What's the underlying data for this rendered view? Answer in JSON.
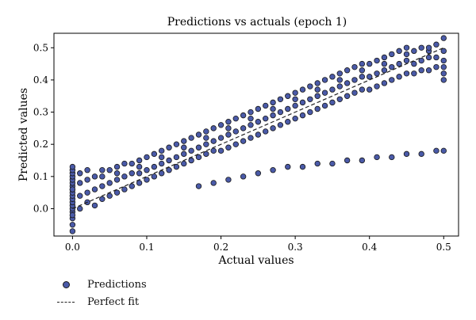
{
  "chart_data": {
    "type": "scatter",
    "title": "Predictions vs actuals (epoch 1)",
    "xlabel": "Actual values",
    "ylabel": "Predicted values",
    "xlim": [
      -0.025,
      0.52
    ],
    "ylim": [
      -0.085,
      0.545
    ],
    "xticks": [
      0.0,
      0.1,
      0.2,
      0.3,
      0.4,
      0.5
    ],
    "xtick_labels": [
      "0.0",
      "0.1",
      "0.2",
      "0.3",
      "0.4",
      "0.5"
    ],
    "yticks": [
      0.0,
      0.1,
      0.2,
      0.3,
      0.4,
      0.5
    ],
    "ytick_labels": [
      "0.0",
      "0.1",
      "0.2",
      "0.3",
      "0.4",
      "0.5"
    ],
    "grid": false,
    "legend_position": "below-left",
    "colors": {
      "marker_fill": "#4a5aa8",
      "marker_edge": "#1a1a1a",
      "line": "#222222"
    },
    "series": [
      {
        "name": "Predictions",
        "kind": "points",
        "x": [
          0,
          0,
          0,
          0,
          0,
          0,
          0,
          0,
          0,
          0,
          0,
          0,
          0,
          0,
          0,
          0,
          0,
          0,
          0,
          0,
          0.01,
          0.01,
          0.01,
          0.01,
          0.02,
          0.02,
          0.02,
          0.02,
          0.03,
          0.03,
          0.03,
          0.04,
          0.04,
          0.04,
          0.04,
          0.05,
          0.05,
          0.05,
          0.06,
          0.06,
          0.06,
          0.06,
          0.07,
          0.07,
          0.07,
          0.08,
          0.08,
          0.08,
          0.09,
          0.09,
          0.09,
          0.09,
          0.1,
          0.1,
          0.1,
          0.11,
          0.11,
          0.11,
          0.12,
          0.12,
          0.12,
          0.12,
          0.13,
          0.13,
          0.13,
          0.14,
          0.14,
          0.14,
          0.15,
          0.15,
          0.15,
          0.15,
          0.16,
          0.16,
          0.16,
          0.17,
          0.17,
          0.17,
          0.18,
          0.18,
          0.18,
          0.18,
          0.19,
          0.19,
          0.19,
          0.2,
          0.2,
          0.2,
          0.21,
          0.21,
          0.21,
          0.21,
          0.22,
          0.22,
          0.22,
          0.23,
          0.23,
          0.23,
          0.24,
          0.24,
          0.24,
          0.24,
          0.25,
          0.25,
          0.25,
          0.26,
          0.26,
          0.26,
          0.27,
          0.27,
          0.27,
          0.27,
          0.28,
          0.28,
          0.28,
          0.29,
          0.29,
          0.29,
          0.3,
          0.3,
          0.3,
          0.3,
          0.31,
          0.31,
          0.31,
          0.32,
          0.32,
          0.32,
          0.33,
          0.33,
          0.33,
          0.33,
          0.34,
          0.34,
          0.34,
          0.35,
          0.35,
          0.35,
          0.36,
          0.36,
          0.36,
          0.36,
          0.37,
          0.37,
          0.37,
          0.38,
          0.38,
          0.38,
          0.39,
          0.39,
          0.39,
          0.39,
          0.4,
          0.4,
          0.4,
          0.41,
          0.41,
          0.41,
          0.42,
          0.42,
          0.42,
          0.42,
          0.43,
          0.43,
          0.43,
          0.44,
          0.44,
          0.44,
          0.45,
          0.45,
          0.45,
          0.45,
          0.46,
          0.46,
          0.46,
          0.47,
          0.47,
          0.47,
          0.48,
          0.48,
          0.48,
          0.48,
          0.49,
          0.49,
          0.49,
          0.5,
          0.5,
          0.5,
          0.5,
          0.5,
          0.5,
          0.17,
          0.19,
          0.21,
          0.23,
          0.25,
          0.27,
          0.29,
          0.31,
          0.33,
          0.35,
          0.37,
          0.39,
          0.41,
          0.43,
          0.45,
          0.47,
          0.49,
          0.5
        ],
        "y": [
          -0.07,
          -0.05,
          -0.03,
          -0.01,
          0.0,
          0.01,
          0.02,
          0.03,
          0.04,
          0.05,
          0.06,
          0.07,
          0.08,
          0.09,
          0.1,
          0.11,
          0.12,
          0.13,
          0.06,
          -0.02,
          0.0,
          0.04,
          0.08,
          0.11,
          0.02,
          0.05,
          0.09,
          0.12,
          0.01,
          0.06,
          0.1,
          0.03,
          0.07,
          0.1,
          0.12,
          0.04,
          0.08,
          0.12,
          0.05,
          0.09,
          0.11,
          0.13,
          0.06,
          0.1,
          0.14,
          0.07,
          0.11,
          0.14,
          0.08,
          0.11,
          0.13,
          0.15,
          0.09,
          0.12,
          0.16,
          0.1,
          0.13,
          0.17,
          0.11,
          0.14,
          0.16,
          0.18,
          0.12,
          0.15,
          0.19,
          0.13,
          0.16,
          0.2,
          0.14,
          0.17,
          0.19,
          0.21,
          0.15,
          0.18,
          0.22,
          0.16,
          0.19,
          0.23,
          0.17,
          0.2,
          0.22,
          0.24,
          0.18,
          0.21,
          0.25,
          0.18,
          0.22,
          0.26,
          0.19,
          0.23,
          0.25,
          0.27,
          0.2,
          0.24,
          0.28,
          0.21,
          0.25,
          0.29,
          0.22,
          0.26,
          0.28,
          0.3,
          0.23,
          0.27,
          0.31,
          0.24,
          0.28,
          0.32,
          0.25,
          0.29,
          0.31,
          0.33,
          0.26,
          0.3,
          0.34,
          0.27,
          0.31,
          0.35,
          0.28,
          0.32,
          0.34,
          0.36,
          0.29,
          0.33,
          0.37,
          0.3,
          0.34,
          0.38,
          0.31,
          0.35,
          0.37,
          0.39,
          0.32,
          0.36,
          0.4,
          0.33,
          0.37,
          0.41,
          0.34,
          0.38,
          0.4,
          0.42,
          0.35,
          0.39,
          0.43,
          0.36,
          0.4,
          0.44,
          0.37,
          0.41,
          0.43,
          0.45,
          0.37,
          0.41,
          0.45,
          0.38,
          0.42,
          0.46,
          0.39,
          0.43,
          0.45,
          0.47,
          0.4,
          0.44,
          0.48,
          0.41,
          0.45,
          0.49,
          0.42,
          0.46,
          0.48,
          0.5,
          0.42,
          0.45,
          0.49,
          0.43,
          0.46,
          0.5,
          0.43,
          0.47,
          0.49,
          0.5,
          0.44,
          0.47,
          0.51,
          0.4,
          0.42,
          0.44,
          0.46,
          0.49,
          0.53,
          0.07,
          0.08,
          0.09,
          0.1,
          0.11,
          0.12,
          0.13,
          0.13,
          0.14,
          0.14,
          0.15,
          0.15,
          0.16,
          0.16,
          0.17,
          0.17,
          0.18,
          0.18
        ]
      },
      {
        "name": "Perfect fit",
        "kind": "line",
        "style": "dashed",
        "x": [
          0.0,
          0.5
        ],
        "y": [
          0.0,
          0.5
        ]
      }
    ]
  }
}
